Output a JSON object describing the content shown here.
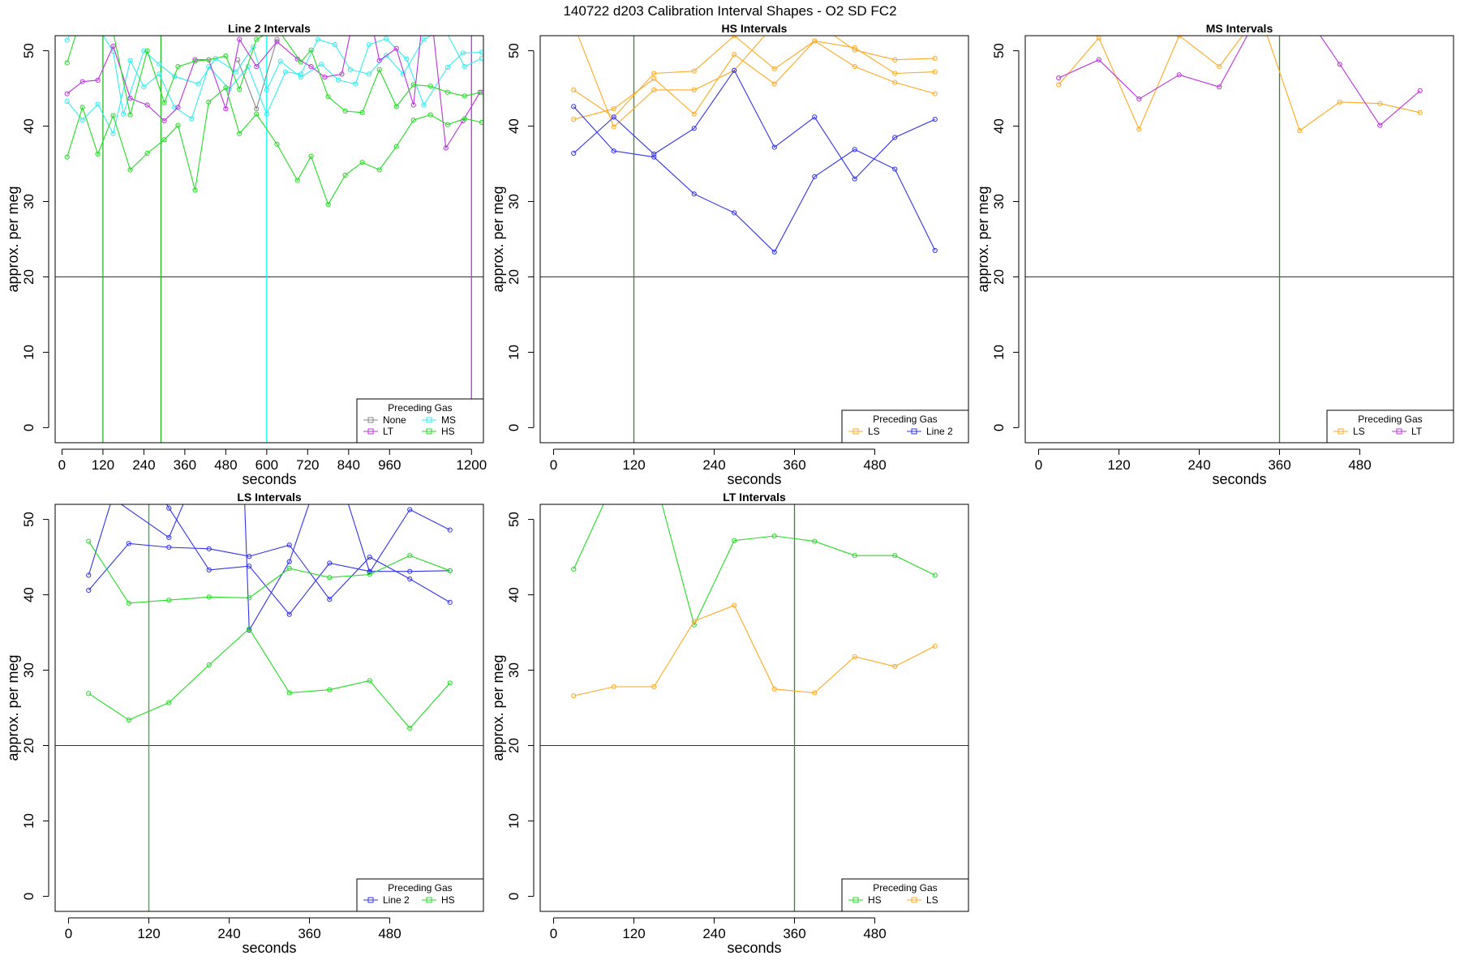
{
  "figure": {
    "title": "140722   d203   Calibration Interval Shapes - O2 SD FC2"
  },
  "chart_data": [
    {
      "type": "line",
      "title": "Line 2 Intervals",
      "xlabel": "seconds",
      "ylabel": "approx. per meg",
      "xlim": [
        -20,
        1235
      ],
      "ylim": [
        -2,
        52
      ],
      "xticks": [
        0,
        120,
        240,
        360,
        480,
        600,
        720,
        840,
        960,
        1200
      ],
      "yticks": [
        0,
        10,
        20,
        30,
        40,
        50
      ],
      "hline": 20,
      "vlines": [
        {
          "x": 120,
          "color": "#22bb22"
        },
        {
          "x": 290,
          "color": "#22bb22"
        },
        {
          "x": 600,
          "color": "#00ffff"
        },
        {
          "x": 1200,
          "color": "#bb33dd"
        }
      ],
      "legend": {
        "title": "Preceding Gas",
        "position": "bottom-right",
        "columns": 2,
        "entries": [
          {
            "label": "None",
            "color": "#888888"
          },
          {
            "label": "MS",
            "color": "#33eeee"
          },
          {
            "label": "LT",
            "color": "#bb33dd"
          },
          {
            "label": "HS",
            "color": "#22dd22"
          }
        ]
      },
      "series": [
        {
          "name": "None",
          "color": "#888888",
          "x": [
            515,
            570,
            630
          ],
          "y": [
            48.8,
            42.3,
            51.5
          ]
        },
        {
          "name": "MS",
          "color": "#33eeee",
          "x": [
            15,
            60,
            105,
            150,
            200,
            240,
            285,
            330,
            380,
            430,
            490,
            545,
            600,
            655,
            700,
            750,
            800,
            845,
            900,
            950,
            1000,
            1060,
            1120,
            1180,
            1230
          ],
          "y": [
            43.3,
            40.8,
            42.9,
            39,
            48.7,
            45.2,
            46.9,
            42.5,
            41,
            47.9,
            44.9,
            47.9,
            41.6,
            47.2,
            46.9,
            51.5,
            50.8,
            47.5,
            46.9,
            49.4,
            46.9,
            51.5,
            53,
            47.9,
            49
          ]
        },
        {
          "name": "MS",
          "color": "#33eeee",
          "x": [
            15,
            45,
            100,
            150,
            180,
            240,
            285,
            330,
            400,
            450,
            510,
            560,
            600,
            640,
            700,
            760,
            810,
            860,
            900,
            950,
            1010,
            1060,
            1130,
            1175,
            1230
          ],
          "y": [
            51.4,
            54,
            53.5,
            49.9,
            41.6,
            50,
            48.2,
            46.6,
            45.6,
            49,
            47.2,
            50.5,
            44.8,
            48.6,
            46.5,
            48.2,
            46.1,
            45.6,
            50.8,
            51.6,
            48.9,
            42.8,
            47.8,
            49.7,
            49.8
          ]
        },
        {
          "name": "LT",
          "color": "#bb33dd",
          "x": [
            15,
            60,
            105,
            150,
            200,
            250,
            300,
            340,
            390,
            430,
            480,
            520,
            570,
            630,
            690,
            730,
            770,
            820,
            880,
            930,
            980,
            1030,
            1070,
            1125,
            1175,
            1225
          ],
          "y": [
            44.3,
            45.9,
            46.1,
            50.6,
            43.7,
            42.8,
            40.7,
            42.5,
            48.8,
            48.8,
            42.3,
            51.5,
            47.9,
            51.2,
            48.9,
            47.9,
            46.5,
            46.9,
            60,
            48.7,
            50.3,
            42.8,
            60,
            37.1,
            40.7,
            44.5
          ]
        },
        {
          "name": "HS",
          "color": "#22dd22",
          "x": [
            15,
            60,
            105,
            150,
            200,
            250,
            300,
            340,
            390,
            430,
            480,
            520,
            570,
            630,
            700,
            730,
            780,
            830,
            880,
            930,
            980,
            1030,
            1080,
            1130,
            1180,
            1230
          ],
          "y": [
            48.4,
            55,
            54,
            52.5,
            41.5,
            50,
            43.1,
            47.9,
            48.6,
            48.8,
            49.3,
            44.9,
            51.5,
            53,
            48.5,
            50.1,
            43.9,
            42,
            41.8,
            47.5,
            42.6,
            45.5,
            45.3,
            44.5,
            44,
            44.5
          ]
        },
        {
          "name": "HS",
          "color": "#22dd22",
          "x": [
            15,
            60,
            105,
            150,
            200,
            250,
            300,
            340,
            390,
            430,
            480,
            520,
            570,
            630,
            690,
            730,
            780,
            830,
            880,
            930,
            980,
            1030,
            1080,
            1130,
            1180,
            1230
          ],
          "y": [
            35.9,
            42.5,
            36.3,
            41.4,
            34.2,
            36.4,
            38.2,
            40.1,
            31.5,
            43.2,
            45.1,
            39,
            41.6,
            37.6,
            32.8,
            36,
            29.6,
            33.5,
            35.2,
            34.2,
            37.3,
            40.8,
            41.5,
            40.2,
            41,
            40.5
          ]
        }
      ]
    },
    {
      "type": "line",
      "title": "HS Intervals",
      "xlabel": "seconds",
      "ylabel": "approx. per meg",
      "xlim": [
        -20,
        620
      ],
      "ylim": [
        -2,
        52
      ],
      "xticks": [
        0,
        120,
        240,
        360,
        480
      ],
      "yticks": [
        0,
        10,
        20,
        30,
        40,
        50
      ],
      "hline": 20,
      "vlines": [
        {
          "x": 120,
          "color": "#2d8a2d"
        }
      ],
      "legend": {
        "title": "Preceding Gas",
        "position": "bottom-right",
        "columns": 2,
        "entries": [
          {
            "label": "LS",
            "color": "#ffaa22"
          },
          {
            "label": "Line 2",
            "color": "#3333ee"
          }
        ]
      },
      "series": [
        {
          "name": "LS",
          "color": "#ffaa22",
          "x": [
            30,
            90,
            150,
            210,
            270,
            330,
            390,
            450,
            510,
            570
          ],
          "y": [
            44.8,
            41.2,
            47,
            47.3,
            52,
            47.6,
            51.3,
            50.4,
            47,
            47.2
          ]
        },
        {
          "name": "LS",
          "color": "#ffaa22",
          "x": [
            30,
            90,
            150,
            210,
            270,
            330,
            390,
            450,
            510,
            570
          ],
          "y": [
            40.9,
            42.3,
            46.3,
            41.6,
            49.5,
            45.6,
            51.3,
            47.9,
            45.8,
            44.3
          ]
        },
        {
          "name": "LS",
          "color": "#ffaa22",
          "x": [
            30,
            90,
            150,
            210,
            270,
            330,
            390,
            450,
            510,
            570
          ],
          "y": [
            53.5,
            39.9,
            44.8,
            44.8,
            47.4,
            53.5,
            53.8,
            50.1,
            48.8,
            49
          ]
        },
        {
          "name": "Line 2",
          "color": "#3333ee",
          "x": [
            30,
            90,
            150,
            210,
            270,
            330,
            390,
            450,
            510,
            570
          ],
          "y": [
            36.4,
            41.2,
            36.3,
            39.7,
            47.4,
            37.2,
            41.2,
            33,
            38.5,
            40.9
          ]
        },
        {
          "name": "Line 2",
          "color": "#3333ee",
          "x": [
            30,
            90,
            150,
            210,
            270,
            330,
            390,
            450,
            510,
            570
          ],
          "y": [
            42.6,
            36.7,
            35.9,
            31,
            28.5,
            23.3,
            33.3,
            36.9,
            34.3,
            23.5
          ]
        }
      ]
    },
    {
      "type": "line",
      "title": "MS Intervals",
      "xlabel": "seconds",
      "ylabel": "approx. per meg",
      "xlim": [
        -20,
        620
      ],
      "ylim": [
        -2,
        52
      ],
      "xticks": [
        0,
        120,
        240,
        360,
        480
      ],
      "yticks": [
        0,
        10,
        20,
        30,
        40,
        50
      ],
      "hline": 20,
      "vlines": [
        {
          "x": 360,
          "color": "#2d8a2d"
        }
      ],
      "legend": {
        "title": "Preceding Gas",
        "position": "bottom-right",
        "columns": 2,
        "entries": [
          {
            "label": "LS",
            "color": "#ffaa22"
          },
          {
            "label": "LT",
            "color": "#bb33dd"
          }
        ]
      },
      "series": [
        {
          "name": "LS",
          "color": "#ffaa22",
          "x": [
            30,
            90,
            150,
            210,
            270,
            330,
            390,
            450,
            510,
            570
          ],
          "y": [
            45.5,
            51.7,
            39.6,
            52,
            47.9,
            55,
            39.4,
            43.2,
            43,
            41.8
          ]
        },
        {
          "name": "LT",
          "color": "#bb33dd",
          "x": [
            30,
            90,
            150,
            210,
            270,
            330,
            390,
            450,
            510,
            570
          ],
          "y": [
            46.4,
            48.8,
            43.6,
            46.8,
            45.2,
            55,
            56,
            48.2,
            40.1,
            44.7
          ]
        }
      ]
    },
    {
      "type": "line",
      "title": "LS Intervals",
      "xlabel": "seconds",
      "ylabel": "approx. per meg",
      "xlim": [
        -20,
        620
      ],
      "ylim": [
        -2,
        52
      ],
      "xticks": [
        0,
        120,
        240,
        360,
        480
      ],
      "yticks": [
        0,
        10,
        20,
        30,
        40,
        50
      ],
      "hline": 20,
      "vlines": [
        {
          "x": 120,
          "color": "#22bb22"
        }
      ],
      "legend": {
        "title": "Preceding Gas",
        "position": "bottom-right",
        "columns": 2,
        "entries": [
          {
            "label": "Line 2",
            "color": "#3333ee"
          },
          {
            "label": "HS",
            "color": "#22dd22"
          }
        ]
      },
      "series": [
        {
          "name": "Line 2",
          "color": "#3333ee",
          "x": [
            30,
            90,
            150,
            210,
            270,
            330,
            390,
            450,
            510,
            570
          ],
          "y": [
            40.6,
            46.8,
            46.3,
            46.1,
            45.1,
            46.6,
            39.4,
            45,
            42.1,
            39
          ]
        },
        {
          "name": "Line 2",
          "color": "#3333ee",
          "x": [
            30,
            90,
            150,
            210,
            270,
            330,
            390,
            450,
            510,
            570
          ],
          "y": [
            42.6,
            60,
            51.5,
            43.3,
            43.8,
            37.4,
            44.2,
            43.1,
            43.1,
            43.2
          ]
        },
        {
          "name": "Line 2",
          "color": "#3333ee",
          "x": [
            30,
            150,
            210,
            260,
            270,
            330,
            390,
            450,
            510,
            570
          ],
          "y": [
            55,
            47.6,
            60,
            60,
            35.3,
            44.4,
            60,
            43,
            51.3,
            48.6
          ]
        },
        {
          "name": "HS",
          "color": "#22dd22",
          "x": [
            30,
            90,
            150,
            210,
            270,
            330,
            390,
            450,
            510,
            570
          ],
          "y": [
            47.1,
            38.9,
            39.3,
            39.7,
            39.6,
            43.5,
            42.3,
            42.7,
            45.2,
            43.2
          ]
        },
        {
          "name": "HS",
          "color": "#22dd22",
          "x": [
            30,
            90,
            150,
            210,
            270,
            330,
            390,
            450,
            510,
            570
          ],
          "y": [
            26.9,
            23.4,
            25.7,
            30.7,
            35.5,
            27,
            27.4,
            28.6,
            22.3,
            28.3
          ]
        }
      ]
    },
    {
      "type": "line",
      "title": "LT Intervals",
      "xlabel": "seconds",
      "ylabel": "approx. per meg",
      "xlim": [
        -20,
        620
      ],
      "ylim": [
        -2,
        52
      ],
      "xticks": [
        0,
        120,
        240,
        360,
        480
      ],
      "yticks": [
        0,
        10,
        20,
        30,
        40,
        50
      ],
      "hline": 20,
      "vlines": [
        {
          "x": 360,
          "color": "#2d8a2d"
        }
      ],
      "legend": {
        "title": "Preceding Gas",
        "position": "bottom-right",
        "columns": 2,
        "entries": [
          {
            "label": "HS",
            "color": "#22dd22"
          },
          {
            "label": "LS",
            "color": "#ffaa22"
          }
        ]
      },
      "series": [
        {
          "name": "HS",
          "color": "#22dd22",
          "x": [
            30,
            90,
            150,
            210,
            270,
            330,
            390,
            450,
            510,
            570
          ],
          "y": [
            43.4,
            55,
            56,
            36,
            47.2,
            47.8,
            47.1,
            45.2,
            45.2,
            42.6
          ]
        },
        {
          "name": "LS",
          "color": "#ffaa22",
          "x": [
            30,
            90,
            150,
            210,
            270,
            330,
            390,
            450,
            510,
            570
          ],
          "y": [
            26.6,
            27.8,
            27.8,
            36.5,
            38.6,
            27.5,
            27,
            31.8,
            30.5,
            33.2
          ]
        }
      ]
    }
  ]
}
